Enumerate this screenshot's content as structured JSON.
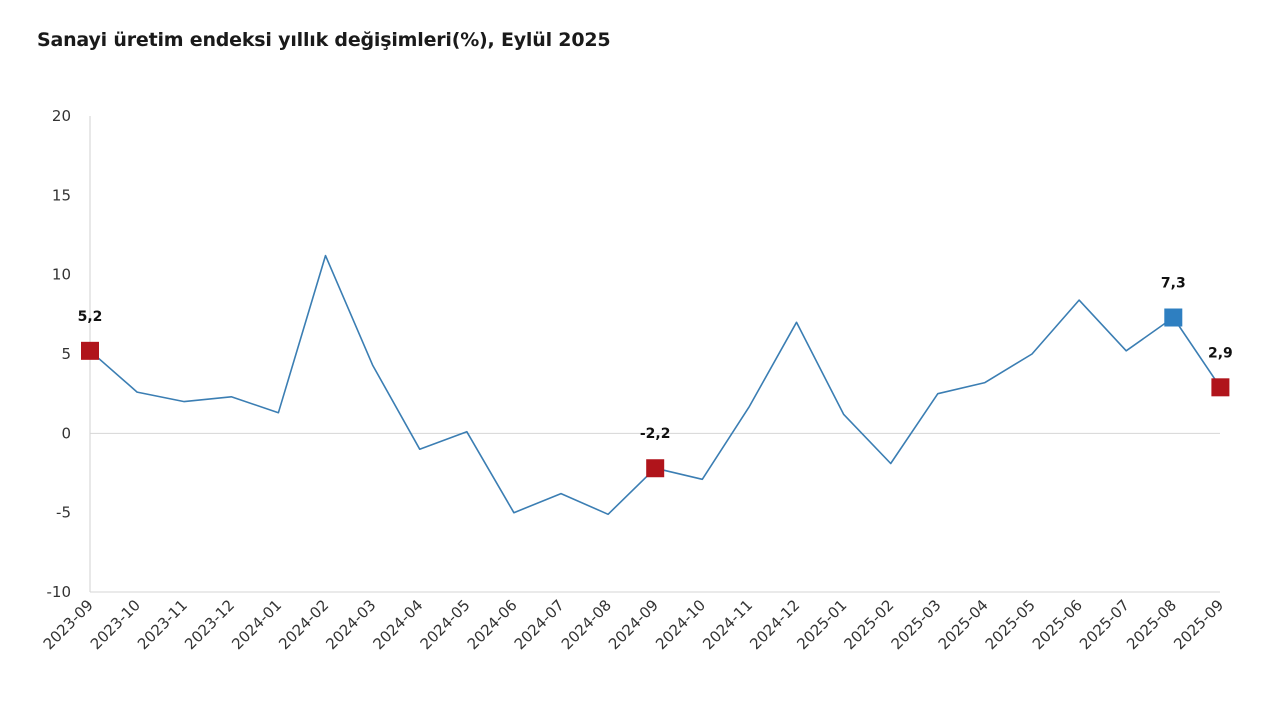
{
  "title": "Sanayi üretim endeksi yıllık değişimleri(%), Eylül 2025",
  "chart_data": {
    "type": "line",
    "title": "Sanayi üretim endeksi yıllık değişimleri(%), Eylül 2025",
    "xlabel": "",
    "ylabel": "",
    "ylim": [
      -10,
      20
    ],
    "yticks": [
      "20",
      "15",
      "10",
      "5",
      "0",
      "-5",
      "-10"
    ],
    "grid": false,
    "categories": [
      "2023-09",
      "2023-10",
      "2023-11",
      "2023-12",
      "2024-01",
      "2024-02",
      "2024-03",
      "2024-04",
      "2024-05",
      "2024-06",
      "2024-07",
      "2024-08",
      "2024-09",
      "2024-10",
      "2024-11",
      "2024-12",
      "2025-01",
      "2025-02",
      "2025-03",
      "2025-04",
      "2025-05",
      "2025-06",
      "2025-07",
      "2025-08",
      "2025-09"
    ],
    "series": [
      {
        "values": [
          5.2,
          2.6,
          2.0,
          2.3,
          1.3,
          11.2,
          4.3,
          -1.0,
          0.1,
          -5.0,
          -3.8,
          -5.1,
          -2.2,
          -2.9,
          1.7,
          7.0,
          1.2,
          -1.9,
          2.5,
          3.2,
          5.0,
          8.4,
          5.2,
          7.3,
          2.9
        ],
        "color": "#3b7eb3"
      }
    ],
    "highlighted_points": [
      {
        "category": "2023-09",
        "value": 5.2,
        "label": "5,2",
        "color": "#b0141b"
      },
      {
        "category": "2024-09",
        "value": -2.2,
        "label": "-2,2",
        "color": "#b0141b"
      },
      {
        "category": "2025-08",
        "value": 7.3,
        "label": "7,3",
        "color": "#2e7fc1"
      },
      {
        "category": "2025-09",
        "value": 2.9,
        "label": "2,9",
        "color": "#b0141b"
      }
    ]
  }
}
